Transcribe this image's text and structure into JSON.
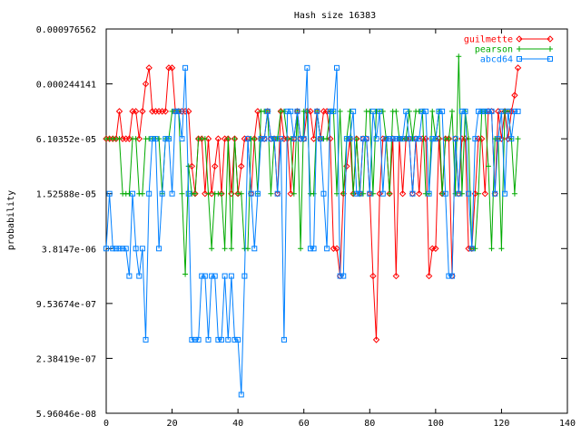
{
  "chart_data": {
    "type": "line",
    "title": "Hash size 16383",
    "xlabel": "",
    "ylabel": "probability",
    "xlim": [
      0,
      140
    ],
    "xticks": [
      0,
      20,
      40,
      60,
      80,
      100,
      120,
      140
    ],
    "yscale": "log",
    "ylim": [
      5.96046e-08,
      0.000976562
    ],
    "yticks": [
      5.96046e-08,
      2.38419e-07,
      9.53674e-07,
      3.8147e-06,
      1.52588e-05,
      6.10352e-05,
      0.000244141,
      0.000976562
    ],
    "ytick_labels": [
      "5.96046e-08",
      "2.38419e-07",
      "9.53674e-07",
      "3.8147e-06",
      "1.52588e-05",
      "6.10352e-05",
      "0.000244141",
      "0.000976562"
    ],
    "legend_position": "top-right",
    "grid": false,
    "series": [
      {
        "name": "guilmette",
        "color": "#ff0000",
        "marker": "diamond",
        "x": [
          0,
          1,
          2,
          3,
          4,
          5,
          6,
          7,
          8,
          9,
          10,
          11,
          12,
          13,
          14,
          15,
          16,
          17,
          18,
          19,
          20,
          21,
          22,
          23,
          24,
          25,
          26,
          27,
          28,
          29,
          30,
          31,
          32,
          33,
          34,
          35,
          36,
          37,
          38,
          39,
          40,
          41,
          42,
          43,
          44,
          45,
          46,
          47,
          48,
          49,
          50,
          51,
          52,
          53,
          54,
          55,
          56,
          57,
          58,
          59,
          60,
          61,
          62,
          63,
          64,
          65,
          66,
          67,
          68,
          69,
          70,
          71,
          72,
          73,
          74,
          75,
          76,
          77,
          78,
          79,
          80,
          81,
          82,
          83,
          84,
          85,
          86,
          87,
          88,
          89,
          90,
          91,
          92,
          93,
          94,
          95,
          96,
          97,
          98,
          99,
          100,
          101,
          102,
          103,
          104,
          105,
          106,
          107,
          108,
          109,
          110,
          111,
          112,
          113,
          114,
          115,
          116,
          117,
          118,
          119,
          120,
          121,
          122,
          123,
          124,
          125
        ],
        "y": [
          6.10352e-05,
          6.10352e-05,
          6.10352e-05,
          6.10352e-05,
          0.00012207,
          6.10352e-05,
          6.10352e-05,
          6.10352e-05,
          0.00012207,
          0.00012207,
          6.10352e-05,
          0.00012207,
          0.000244141,
          0.000366211,
          0.00012207,
          0.00012207,
          0.00012207,
          0.00012207,
          0.00012207,
          0.000366211,
          0.000366211,
          0.00012207,
          0.00012207,
          0.00012207,
          0.00012207,
          0.00012207,
          3.05176e-05,
          1.52588e-05,
          6.10352e-05,
          6.10352e-05,
          1.52588e-05,
          6.10352e-05,
          1.52588e-05,
          3.05176e-05,
          6.10352e-05,
          1.52588e-05,
          6.10352e-05,
          6.10352e-05,
          1.52588e-05,
          6.10352e-05,
          1.52588e-05,
          3.05176e-05,
          6.10352e-05,
          6.10352e-05,
          1.52588e-05,
          6.10352e-05,
          0.00012207,
          6.10352e-05,
          6.10352e-05,
          0.00012207,
          6.10352e-05,
          6.10352e-05,
          1.52588e-05,
          0.00012207,
          6.10352e-05,
          6.10352e-05,
          1.52588e-05,
          6.10352e-05,
          0.00012207,
          6.10352e-05,
          6.10352e-05,
          0.00012207,
          0.00012207,
          6.10352e-05,
          0.00012207,
          6.10352e-05,
          0.00012207,
          0.00012207,
          6.10352e-05,
          3.8147e-06,
          3.8147e-06,
          1.90735e-06,
          1.52588e-05,
          3.05176e-05,
          6.10352e-05,
          1.52588e-05,
          6.10352e-05,
          1.52588e-05,
          6.10352e-05,
          6.10352e-05,
          1.52588e-05,
          1.90735e-06,
          3.8147e-07,
          1.52588e-05,
          6.10352e-05,
          6.10352e-05,
          1.52588e-05,
          6.10352e-05,
          1.90735e-06,
          6.10352e-05,
          1.52588e-05,
          6.10352e-05,
          6.10352e-05,
          1.52588e-05,
          6.10352e-05,
          1.52588e-05,
          6.10352e-05,
          6.10352e-05,
          1.90735e-06,
          3.8147e-06,
          3.8147e-06,
          6.10352e-05,
          1.52588e-05,
          6.10352e-05,
          6.10352e-05,
          1.90735e-06,
          6.10352e-05,
          1.52588e-05,
          6.10352e-05,
          6.10352e-05,
          3.8147e-06,
          3.8147e-06,
          1.52588e-05,
          6.10352e-05,
          6.10352e-05,
          1.52588e-05,
          0.00012207,
          0.00012207,
          1.52588e-05,
          0.00012207,
          6.10352e-05,
          0.00012207,
          6.10352e-05,
          0.00012207,
          0.000183105,
          0.000366211
        ]
      },
      {
        "name": "pearson",
        "color": "#00aa00",
        "marker": "plus",
        "x": [
          0,
          1,
          2,
          3,
          4,
          5,
          6,
          7,
          8,
          9,
          10,
          11,
          12,
          13,
          14,
          15,
          16,
          17,
          18,
          19,
          20,
          21,
          22,
          23,
          24,
          25,
          26,
          27,
          28,
          29,
          30,
          31,
          32,
          33,
          34,
          35,
          36,
          37,
          38,
          39,
          40,
          41,
          42,
          43,
          44,
          45,
          46,
          47,
          48,
          49,
          50,
          51,
          52,
          53,
          54,
          55,
          56,
          57,
          58,
          59,
          60,
          61,
          62,
          63,
          64,
          65,
          66,
          67,
          68,
          69,
          70,
          71,
          72,
          73,
          74,
          75,
          76,
          77,
          78,
          79,
          80,
          81,
          82,
          83,
          84,
          85,
          86,
          87,
          88,
          89,
          90,
          91,
          92,
          93,
          94,
          95,
          96,
          97,
          98,
          99,
          100,
          101,
          102,
          103,
          104,
          105,
          106,
          107,
          108,
          109,
          110,
          111,
          112,
          113,
          114,
          115,
          116,
          117,
          118,
          119,
          120,
          121,
          122,
          123,
          124,
          125
        ],
        "y": [
          6.10352e-05,
          6.10352e-05,
          6.10352e-05,
          6.10352e-05,
          6.10352e-05,
          1.52588e-05,
          1.52588e-05,
          1.52588e-05,
          6.10352e-05,
          6.10352e-05,
          1.52588e-05,
          1.52588e-05,
          6.10352e-05,
          6.10352e-05,
          6.10352e-05,
          6.10352e-05,
          6.10352e-05,
          1.52588e-05,
          6.10352e-05,
          6.10352e-05,
          0.00012207,
          0.00012207,
          0.00012207,
          1.52588e-05,
          2e-06,
          3.05176e-05,
          1.52588e-05,
          1.52588e-05,
          6.10352e-05,
          6.10352e-05,
          6.10352e-05,
          1.52588e-05,
          3.8147e-06,
          1.52588e-05,
          1.52588e-05,
          1.52588e-05,
          3.8147e-06,
          6.10352e-05,
          3.8147e-06,
          6.10352e-05,
          1.52588e-05,
          1.52588e-05,
          3.8147e-06,
          3.8147e-06,
          6.10352e-05,
          6.10352e-05,
          1.52588e-05,
          0.00012207,
          0.00012207,
          0.00012207,
          1.52588e-05,
          6.10352e-05,
          6.10352e-05,
          0.00012207,
          0.00012207,
          6.10352e-05,
          6.10352e-05,
          1.52588e-05,
          0.00012207,
          3.8147e-06,
          0.00012207,
          0.00012207,
          1.52588e-05,
          1.52588e-05,
          0.00012207,
          6.10352e-05,
          6.10352e-05,
          6.10352e-05,
          0.00012207,
          0.00012207,
          1.52588e-05,
          0.00012207,
          1.52588e-05,
          6.10352e-05,
          0.00012207,
          1.52588e-05,
          6.10352e-05,
          1.52588e-05,
          1.52588e-05,
          0.00012207,
          0.00012207,
          1.52588e-05,
          0.00012207,
          0.00012207,
          0.00012207,
          6.10352e-05,
          1.52588e-05,
          0.00012207,
          0.00012207,
          6.10352e-05,
          6.10352e-05,
          6.10352e-05,
          0.00012207,
          6.10352e-05,
          0.00012207,
          0.00012207,
          0.00012207,
          1.52588e-05,
          1.52588e-05,
          0.00012207,
          6.10352e-05,
          0.00012207,
          1.52588e-05,
          6.10352e-05,
          6.10352e-05,
          0.00012207,
          1.52588e-05,
          0.000488281,
          1.52588e-05,
          0.00012207,
          6.10352e-05,
          3.8147e-06,
          3.8147e-06,
          1.52588e-05,
          0.00012207,
          0.00012207,
          3.05176e-05,
          3.8147e-06,
          6.10352e-05,
          6.10352e-05,
          3.8147e-06,
          0.00012207,
          0.00012207,
          6.10352e-05,
          1.52588e-05,
          6.10352e-05
        ]
      },
      {
        "name": "abcd64",
        "color": "#0080ff",
        "marker": "square",
        "x": [
          0,
          1,
          2,
          3,
          4,
          5,
          6,
          7,
          8,
          9,
          10,
          11,
          12,
          13,
          14,
          15,
          16,
          17,
          18,
          19,
          20,
          21,
          22,
          23,
          24,
          25,
          26,
          27,
          28,
          29,
          30,
          31,
          32,
          33,
          34,
          35,
          36,
          37,
          38,
          39,
          40,
          41,
          42,
          43,
          44,
          45,
          46,
          47,
          48,
          49,
          50,
          51,
          52,
          53,
          54,
          55,
          56,
          57,
          58,
          59,
          60,
          61,
          62,
          63,
          64,
          65,
          66,
          67,
          68,
          69,
          70,
          71,
          72,
          73,
          74,
          75,
          76,
          77,
          78,
          79,
          80,
          81,
          82,
          83,
          84,
          85,
          86,
          87,
          88,
          89,
          90,
          91,
          92,
          93,
          94,
          95,
          96,
          97,
          98,
          99,
          100,
          101,
          102,
          103,
          104,
          105,
          106,
          107,
          108,
          109,
          110,
          111,
          112,
          113,
          114,
          115,
          116,
          117,
          118,
          119,
          120,
          121,
          122,
          123,
          124,
          125
        ],
        "y": [
          3.8147e-06,
          1.52588e-05,
          3.8147e-06,
          3.8147e-06,
          3.8147e-06,
          3.8147e-06,
          3.8147e-06,
          1.90735e-06,
          1.52588e-05,
          3.8147e-06,
          1.90735e-06,
          3.8147e-06,
          3.8147e-07,
          1.52588e-05,
          6.10352e-05,
          6.10352e-05,
          3.8147e-06,
          1.52588e-05,
          6.10352e-05,
          6.10352e-05,
          1.52588e-05,
          0.00012207,
          0.00012207,
          6.10352e-05,
          0.000366211,
          1.52588e-05,
          3.8147e-07,
          3.8147e-07,
          3.8147e-07,
          1.90735e-06,
          1.90735e-06,
          3.8147e-07,
          1.90735e-06,
          1.90735e-06,
          3.8147e-07,
          3.8147e-07,
          1.90735e-06,
          3.8147e-07,
          1.90735e-06,
          3.8147e-07,
          3.8147e-07,
          9.53674e-08,
          1.90735e-06,
          6.10352e-05,
          1.52588e-05,
          3.8147e-06,
          1.52588e-05,
          6.10352e-05,
          6.10352e-05,
          0.00012207,
          6.10352e-05,
          6.10352e-05,
          1.52588e-05,
          6.10352e-05,
          3.8147e-07,
          0.00012207,
          0.00012207,
          6.10352e-05,
          0.00012207,
          6.10352e-05,
          6.10352e-05,
          0.000366211,
          3.8147e-06,
          3.8147e-06,
          0.00012207,
          6.10352e-05,
          1.52588e-05,
          3.8147e-06,
          0.00012207,
          0.00012207,
          0.000366211,
          1.90735e-06,
          1.90735e-06,
          6.10352e-05,
          6.10352e-05,
          0.00012207,
          1.52588e-05,
          1.52588e-05,
          6.10352e-05,
          6.10352e-05,
          1.52588e-05,
          0.00012207,
          6.10352e-05,
          0.00012207,
          1.52588e-05,
          6.10352e-05,
          6.10352e-05,
          6.10352e-05,
          6.10352e-05,
          6.10352e-05,
          6.10352e-05,
          0.00012207,
          6.10352e-05,
          1.52588e-05,
          6.10352e-05,
          6.10352e-05,
          0.00012207,
          0.00012207,
          1.52588e-05,
          6.10352e-05,
          6.10352e-05,
          0.00012207,
          0.00012207,
          1.52588e-05,
          1.90735e-06,
          1.90735e-06,
          6.10352e-05,
          1.52588e-05,
          0.00012207,
          0.00012207,
          1.52588e-05,
          3.8147e-06,
          6.10352e-05,
          0.00012207,
          0.00012207,
          0.00012207,
          0.00012207,
          0.00012207,
          1.52588e-05,
          6.10352e-05,
          0.00012207,
          1.52588e-05,
          0.00012207,
          6.10352e-05,
          0.00012207,
          0.00012207
        ]
      }
    ]
  }
}
